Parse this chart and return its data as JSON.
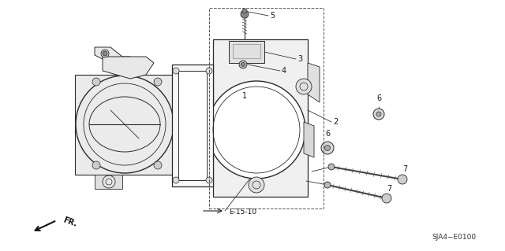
{
  "bg_color": "#ffffff",
  "lc": "#2a2a2a",
  "lc_thin": "#444444",
  "fig_width": 6.4,
  "fig_height": 3.19,
  "dpi": 100,
  "sja4_label": "SJA4−E0100",
  "e1510_label": "→ E-15-10",
  "fr_label": "FR."
}
